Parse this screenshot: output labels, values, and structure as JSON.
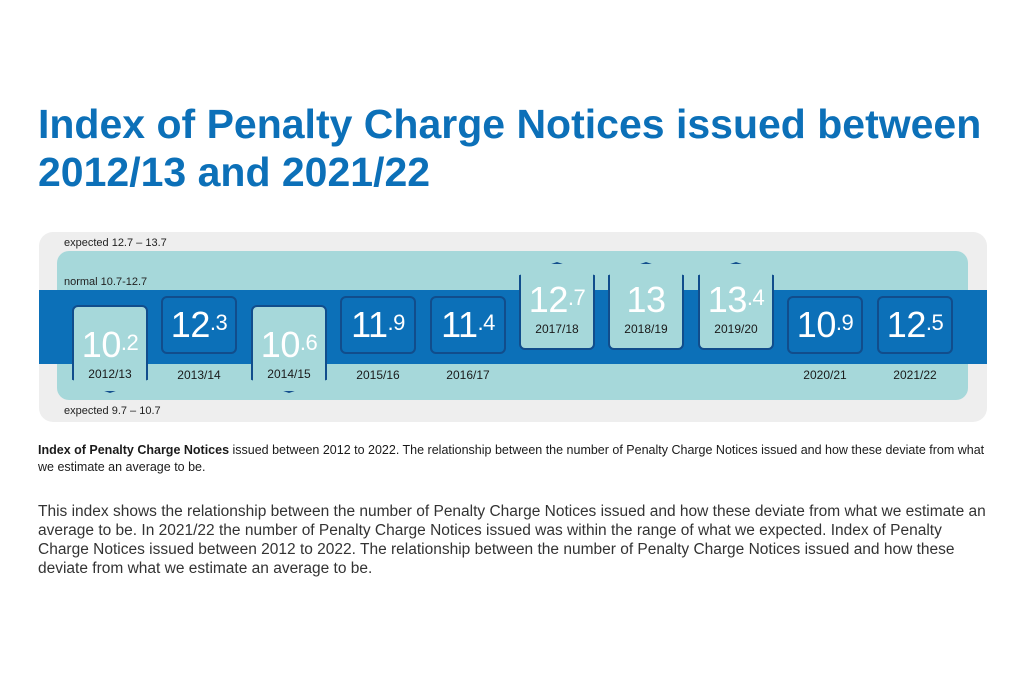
{
  "title": "Index of Penalty Charge Notices issued between 2012/13 and 2021/22",
  "zones": {
    "expected_high": "expected 12.7 – 13.7",
    "normal": "normal 10.7-12.7",
    "expected_low": "expected 9.7 – 10.7"
  },
  "chart_data": {
    "type": "table",
    "title": "Index of Penalty Charge Notices issued between 2012/13 and 2021/22",
    "categories": [
      "2012/13",
      "2013/14",
      "2014/15",
      "2015/16",
      "2016/17",
      "2017/18",
      "2018/19",
      "2019/20",
      "2020/21",
      "2021/22"
    ],
    "values": [
      10.2,
      12.3,
      10.6,
      11.9,
      11.4,
      12.7,
      13,
      13.4,
      10.9,
      12.5
    ],
    "bands": {
      "expected_low": [
        9.7,
        10.7
      ],
      "normal": [
        10.7,
        12.7
      ],
      "expected_high": [
        12.7,
        13.7
      ]
    },
    "points": [
      {
        "year": "2012/13",
        "int": "10",
        "dec": ".2",
        "zone": "below"
      },
      {
        "year": "2013/14",
        "int": "12",
        "dec": ".3",
        "zone": "normal"
      },
      {
        "year": "2014/15",
        "int": "10",
        "dec": ".6",
        "zone": "below"
      },
      {
        "year": "2015/16",
        "int": "11",
        "dec": ".9",
        "zone": "normal"
      },
      {
        "year": "2016/17",
        "int": "11",
        "dec": ".4",
        "zone": "normal"
      },
      {
        "year": "2017/18",
        "int": "12",
        "dec": ".7",
        "zone": "above"
      },
      {
        "year": "2018/19",
        "int": "13",
        "dec": "",
        "zone": "above"
      },
      {
        "year": "2019/20",
        "int": "13",
        "dec": ".4",
        "zone": "above"
      },
      {
        "year": "2020/21",
        "int": "10",
        "dec": ".9",
        "zone": "normal"
      },
      {
        "year": "2021/22",
        "int": "12",
        "dec": ".5",
        "zone": "normal"
      }
    ]
  },
  "caption": {
    "bold": "Index of Penalty Charge Notices",
    "rest": " issued between 2012 to 2022. The relationship between the number of Penalty Charge Notices issued and how these deviate from what we estimate an average to be."
  },
  "body": "This index shows the relationship between the number of Penalty Charge Notices issued and how these deviate from what we estimate an average to be. In 2021/22 the number of Penalty Charge Notices issued was within the range of what we expected. Index of Penalty Charge Notices issued between 2012 to 2022. The relationship between the number of Penalty Charge Notices issued and how these deviate from what we estimate an average to be."
}
